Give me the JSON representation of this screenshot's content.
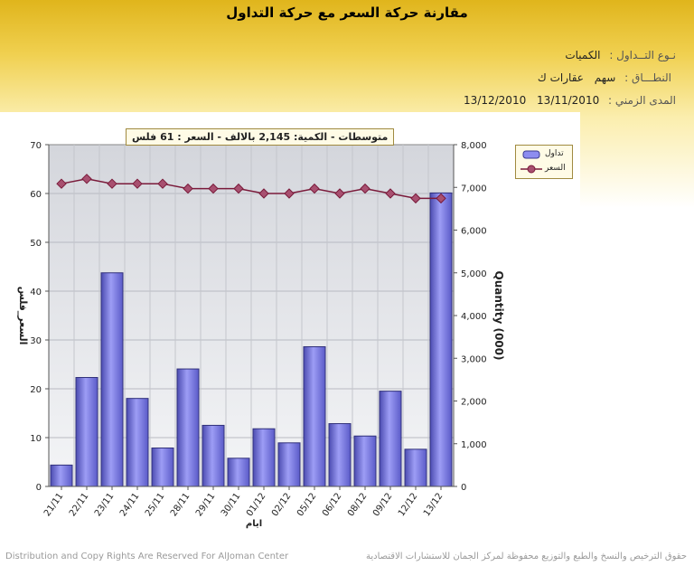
{
  "header": {
    "title": "مقارنة حركة السعر مع حركة التداول",
    "type_label": "نـوع التــداول :",
    "type_value": "الكميات",
    "scope_label": "النطـــاق :",
    "scope_kind": "سهم",
    "scope_value": "عقارات ك",
    "range_label": "المدى الزمني :",
    "range_from": "13/11/2010",
    "range_to": "13/12/2010"
  },
  "summary": "متوسطات - الكمية: 2,145 بالالف  - السعر : 61 فلس",
  "footer": {
    "left": "Distribution and Copy Rights Are Reserved For AlJoman Center",
    "right": "حقوق الترخيص والنسخ والطبع والتوزيع محفوظة لمركز الجمان للاستشارات الاقتصادية"
  },
  "colors": {
    "bar": "#7b7be6",
    "line": "#7a1a3a",
    "marker": "#a85070"
  },
  "chart_data": {
    "type": "bar",
    "categories": [
      "21/11",
      "22/11",
      "23/11",
      "24/11",
      "25/11",
      "28/11",
      "29/11",
      "30/11",
      "01/12",
      "02/12",
      "05/12",
      "06/12",
      "08/12",
      "09/12",
      "12/12",
      "13/12"
    ],
    "xlabel": "ايام",
    "y_left": {
      "label": "السعر_فلس",
      "range": [
        0,
        70
      ],
      "ticks": [
        "0",
        "10",
        "20",
        "30",
        "40",
        "50",
        "60",
        "70"
      ]
    },
    "y_right": {
      "label": "Quantity (000)",
      "range": [
        0,
        8000
      ],
      "ticks": [
        "0",
        "1,000",
        "2,000",
        "3,000",
        "4,000",
        "5,000",
        "6,000",
        "7,000",
        "8,000"
      ]
    },
    "series": [
      {
        "name": "تداول",
        "type": "bar",
        "axis": "right",
        "values": [
          500,
          2550,
          5000,
          2060,
          900,
          2750,
          1430,
          660,
          1350,
          1020,
          3270,
          1470,
          1180,
          2230,
          870,
          6870
        ]
      },
      {
        "name": "السعر",
        "type": "line",
        "axis": "left",
        "values": [
          62,
          63,
          62,
          62,
          62,
          61,
          61,
          61,
          60,
          60,
          61,
          60,
          61,
          60,
          59,
          59
        ]
      }
    ],
    "legend": "top-right",
    "grid": true
  }
}
